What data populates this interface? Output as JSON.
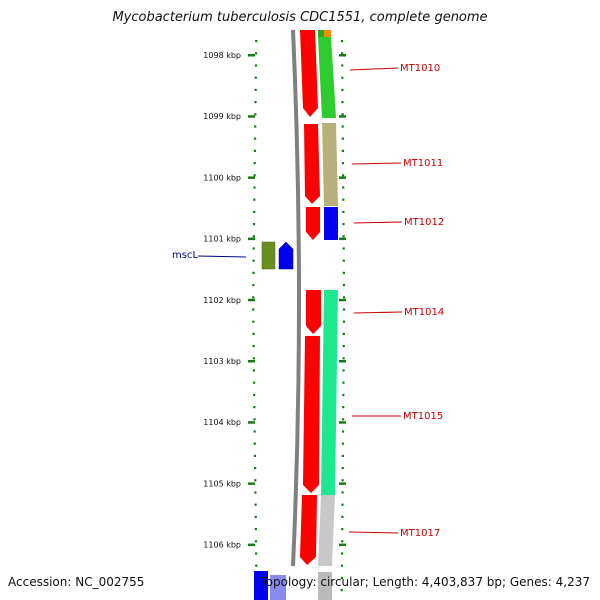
{
  "title": "Mycobacterium tuberculosis CDC1551, complete genome",
  "footer": {
    "accession": "Accession: NC_002755",
    "summary": "Topology: circular; Length: 4,403,837 bp; Genes: 4,237"
  },
  "kbp_scale": [
    {
      "label": "1098 kbp",
      "value": 1098
    },
    {
      "label": "1099 kbp",
      "value": 1099
    },
    {
      "label": "1100 kbp",
      "value": 1100
    },
    {
      "label": "1101 kbp",
      "value": 1101
    },
    {
      "label": "1102 kbp",
      "value": 1102
    },
    {
      "label": "1103 kbp",
      "value": 1103
    },
    {
      "label": "1104 kbp",
      "value": 1104
    },
    {
      "label": "1105 kbp",
      "value": 1105
    },
    {
      "label": "1106 kbp",
      "value": 1106
    }
  ],
  "gene_labels": [
    {
      "name": "MT1010",
      "color": "#cc0000"
    },
    {
      "name": "MT1011",
      "color": "#cc0000"
    },
    {
      "name": "MT1012",
      "color": "#cc0000"
    },
    {
      "name": "MT1014",
      "color": "#cc0000"
    },
    {
      "name": "MT1015",
      "color": "#cc0000"
    },
    {
      "name": "MT1017",
      "color": "#cc0000"
    },
    {
      "name": "mscL",
      "color": "#00008b"
    }
  ],
  "colors": {
    "scale_ticks": "#1a7a1a",
    "backbone": "#808080",
    "cds": "#ff0000",
    "mscL_green": "#6b8e23",
    "mscL_blue": "#0000ee"
  }
}
